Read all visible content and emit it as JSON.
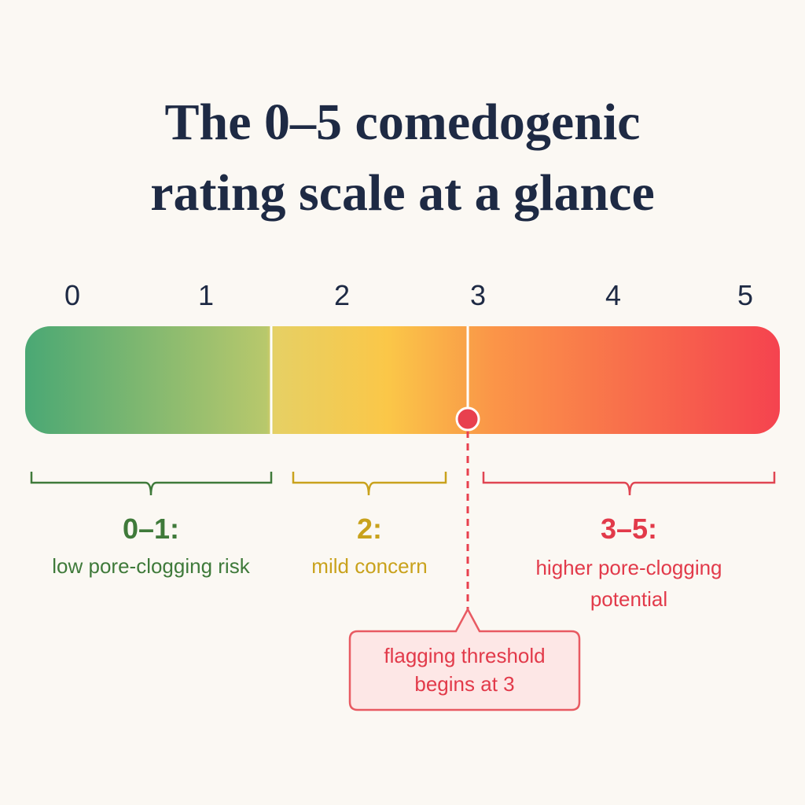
{
  "title": [
    "The 0–5 comedogenic",
    "rating scale at a glance"
  ],
  "scale": {
    "ticks": [
      "0",
      "1",
      "2",
      "3",
      "4",
      "5"
    ]
  },
  "groups": [
    {
      "range": "0–1:",
      "description": "low pore-clogging risk"
    },
    {
      "range": "2:",
      "description": "mild concern"
    },
    {
      "range": "3–5:",
      "description": "higher pore-clogging potential"
    }
  ],
  "callout": "flagging threshold begins at 3"
}
